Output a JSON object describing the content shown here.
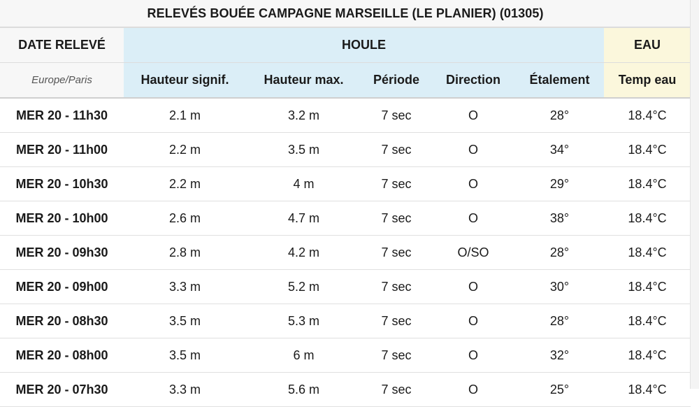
{
  "title": "RELEVÉS BOUÉE CAMPAGNE MARSEILLE (LE PLANIER) (01305)",
  "header": {
    "date_group": "DATE RELEVÉ",
    "houle_group": "HOULE",
    "eau_group": "EAU",
    "timezone": "Europe/Paris",
    "columns": [
      "Hauteur signif.",
      "Hauteur max.",
      "Période",
      "Direction",
      "Étalement",
      "Temp eau"
    ]
  },
  "colors": {
    "houle_bg": "#dbeef7",
    "eau_bg": "#fbf7dc",
    "date_bg": "#f7f7f7"
  },
  "rows": [
    [
      "MER 20 - 11h30",
      "2.1 m",
      "3.2 m",
      "7 sec",
      "O",
      "28°",
      "18.4°C"
    ],
    [
      "MER 20 - 11h00",
      "2.2 m",
      "3.5 m",
      "7 sec",
      "O",
      "34°",
      "18.4°C"
    ],
    [
      "MER 20 - 10h30",
      "2.2 m",
      "4 m",
      "7 sec",
      "O",
      "29°",
      "18.4°C"
    ],
    [
      "MER 20 - 10h00",
      "2.6 m",
      "4.7 m",
      "7 sec",
      "O",
      "38°",
      "18.4°C"
    ],
    [
      "MER 20 - 09h30",
      "2.8 m",
      "4.2 m",
      "7 sec",
      "O/SO",
      "28°",
      "18.4°C"
    ],
    [
      "MER 20 - 09h00",
      "3.3 m",
      "5.2 m",
      "7 sec",
      "O",
      "30°",
      "18.4°C"
    ],
    [
      "MER 20 - 08h30",
      "3.5 m",
      "5.3 m",
      "7 sec",
      "O",
      "28°",
      "18.4°C"
    ],
    [
      "MER 20 - 08h00",
      "3.5 m",
      "6 m",
      "7 sec",
      "O",
      "32°",
      "18.4°C"
    ],
    [
      "MER 20 - 07h30",
      "3.3 m",
      "5.6 m",
      "7 sec",
      "O",
      "25°",
      "18.4°C"
    ]
  ]
}
